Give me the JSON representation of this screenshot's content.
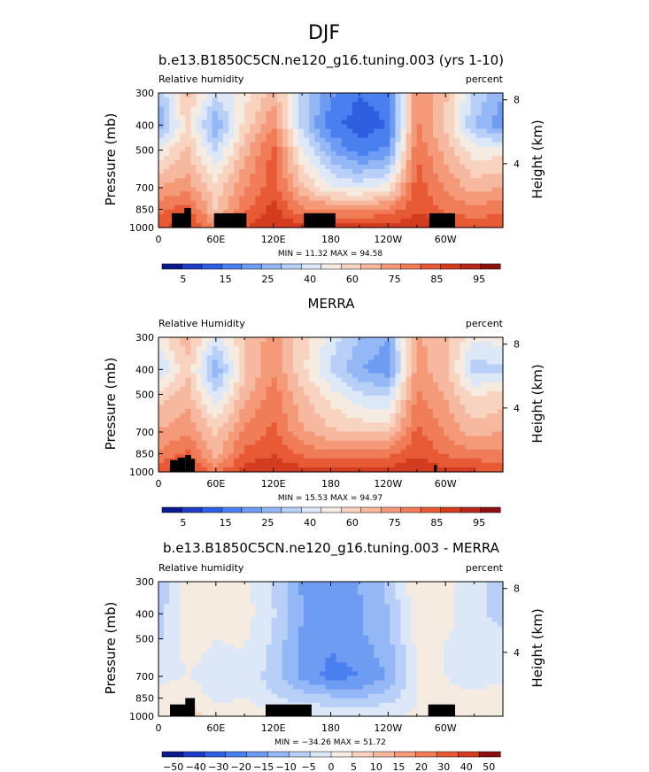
{
  "page_title": "DJF",
  "chart_data": [
    {
      "type": "heatmap",
      "title": "b.e13.B1850C5CN.ne120_g16.tuning.003 (yrs 1-10)",
      "left_label": "Relative humidity",
      "right_label": "percent",
      "ylabel": "Pressure (mb)",
      "ylabel2": "Height (km)",
      "y_ticks": [
        "300",
        "400",
        "500",
        "700",
        "850",
        "1000"
      ],
      "y2_ticks": [
        "8",
        "4"
      ],
      "x_ticks": [
        "0",
        "60E",
        "120E",
        "180",
        "120W",
        "60W"
      ],
      "min_max": "MIN =   11.32   MAX =   94.58",
      "colorbar_labels": [
        "5",
        "15",
        "25",
        "40",
        "60",
        "75",
        "85",
        "95"
      ],
      "colorbar_colors": [
        "#0a1a8c",
        "#1e3cc8",
        "#2f5fe0",
        "#4a7ff0",
        "#6e9cf2",
        "#94b8f5",
        "#b8d0f7",
        "#dce8f8",
        "#f5ebe0",
        "#f8d4c0",
        "#f7b8a0",
        "#f49a78",
        "#f07c58",
        "#e85a35",
        "#d43c20",
        "#b82818",
        "#8c1010"
      ],
      "value_range": [
        0,
        100
      ],
      "lon": [
        0,
        30,
        60,
        90,
        120,
        150,
        180,
        210,
        240,
        270,
        300,
        330,
        360
      ],
      "plev": [
        300,
        400,
        500,
        700,
        850,
        1000
      ],
      "values": [
        [
          35,
          60,
          42,
          50,
          62,
          40,
          25,
          18,
          20,
          70,
          60,
          40,
          30
        ],
        [
          30,
          55,
          30,
          55,
          70,
          38,
          20,
          14,
          18,
          72,
          58,
          35,
          25
        ],
        [
          48,
          60,
          40,
          62,
          78,
          48,
          30,
          20,
          25,
          76,
          62,
          50,
          50
        ],
        [
          65,
          68,
          55,
          70,
          80,
          60,
          48,
          45,
          50,
          80,
          70,
          62,
          65
        ],
        [
          75,
          80,
          58,
          75,
          85,
          72,
          70,
          70,
          72,
          82,
          75,
          72,
          75
        ],
        [
          82,
          86,
          70,
          82,
          88,
          84,
          85,
          86,
          85,
          88,
          84,
          82,
          82
        ]
      ],
      "topography": [
        [
          14,
          32,
          880
        ],
        [
          27,
          34,
          840
        ],
        [
          58,
          92,
          880
        ],
        [
          152,
          185,
          880
        ],
        [
          283,
          310,
          880
        ]
      ]
    },
    {
      "type": "heatmap",
      "title": "MERRA",
      "left_label": "Relative Humidity",
      "right_label": "percent",
      "ylabel": "Pressure (mb)",
      "ylabel2": "Height (km)",
      "y_ticks": [
        "300",
        "400",
        "500",
        "700",
        "850",
        "1000"
      ],
      "y2_ticks": [
        "8",
        "4"
      ],
      "x_ticks": [
        "0",
        "60E",
        "120E",
        "180",
        "120W",
        "60W"
      ],
      "min_max": "MIN =   15.53   MAX =   94.97",
      "colorbar_labels": [
        "5",
        "15",
        "25",
        "40",
        "60",
        "75",
        "85",
        "95"
      ],
      "colorbar_colors": [
        "#0a1a8c",
        "#1e3cc8",
        "#2f5fe0",
        "#4a7ff0",
        "#6e9cf2",
        "#94b8f5",
        "#b8d0f7",
        "#dce8f8",
        "#f5ebe0",
        "#f8d4c0",
        "#f7b8a0",
        "#f49a78",
        "#f07c58",
        "#e85a35",
        "#d43c20",
        "#b82818",
        "#8c1010"
      ],
      "value_range": [
        0,
        100
      ],
      "lon": [
        0,
        30,
        60,
        90,
        120,
        150,
        180,
        210,
        240,
        270,
        300,
        330,
        360
      ],
      "plev": [
        300,
        400,
        500,
        700,
        850,
        1000
      ],
      "values": [
        [
          50,
          62,
          45,
          58,
          68,
          55,
          45,
          35,
          30,
          65,
          62,
          48,
          50
        ],
        [
          40,
          58,
          30,
          58,
          70,
          55,
          40,
          30,
          25,
          68,
          60,
          38,
          40
        ],
        [
          55,
          62,
          42,
          62,
          74,
          60,
          50,
          42,
          40,
          72,
          64,
          52,
          55
        ],
        [
          65,
          70,
          58,
          72,
          78,
          66,
          60,
          58,
          58,
          78,
          70,
          62,
          65
        ],
        [
          72,
          78,
          62,
          78,
          82,
          75,
          72,
          72,
          74,
          82,
          76,
          72,
          72
        ],
        [
          82,
          86,
          74,
          85,
          88,
          86,
          86,
          87,
          86,
          88,
          84,
          84,
          82
        ]
      ],
      "topography": [
        [
          12,
          20,
          900
        ],
        [
          20,
          28,
          880
        ],
        [
          28,
          34,
          860
        ],
        [
          34,
          38,
          890
        ],
        [
          288,
          291,
          940
        ]
      ]
    },
    {
      "type": "heatmap",
      "title": "b.e13.B1850C5CN.ne120_g16.tuning.003 - MERRA",
      "left_label": "Relative humidity",
      "right_label": "percent",
      "ylabel": "Pressure (mb)",
      "ylabel2": "Height (km)",
      "y_ticks": [
        "300",
        "400",
        "500",
        "700",
        "850",
        "1000"
      ],
      "y2_ticks": [
        "8",
        "4"
      ],
      "x_ticks": [
        "0",
        "60E",
        "120E",
        "180",
        "120W",
        "60W"
      ],
      "min_max": "MIN = −34.26   MAX =   51.72",
      "colorbar_labels": [
        "−50",
        "−40",
        "−30",
        "−20",
        "−15",
        "−10",
        "−5",
        "0",
        "5",
        "10",
        "15",
        "20",
        "30",
        "40",
        "50"
      ],
      "colorbar_colors": [
        "#0a1a8c",
        "#1e3cc8",
        "#2f5fe0",
        "#4a7ff0",
        "#6e9cf2",
        "#94b8f5",
        "#b8d0f7",
        "#dce8f8",
        "#f5ebe0",
        "#f8d4c0",
        "#f7b8a0",
        "#f49a78",
        "#f07c58",
        "#e85a35",
        "#d43c20",
        "#8c1010"
      ],
      "value_range": [
        -55,
        55
      ],
      "lon": [
        0,
        30,
        60,
        90,
        120,
        150,
        180,
        210,
        240,
        270,
        300,
        330,
        360
      ],
      "plev": [
        300,
        400,
        500,
        700,
        850,
        1000
      ],
      "values": [
        [
          -15,
          5,
          3,
          2,
          -8,
          -22,
          -25,
          -20,
          -12,
          6,
          2,
          -4,
          -12
        ],
        [
          -10,
          4,
          4,
          3,
          -6,
          -20,
          -24,
          -22,
          -14,
          4,
          2,
          -4,
          -10
        ],
        [
          -8,
          2,
          0,
          1,
          -8,
          -22,
          -26,
          -22,
          -16,
          2,
          0,
          -2,
          -5
        ],
        [
          -2,
          0,
          -2,
          -2,
          -10,
          -22,
          -30,
          -28,
          -20,
          0,
          0,
          -2,
          -2
        ],
        [
          3,
          4,
          -2,
          0,
          -6,
          -10,
          -12,
          -14,
          -10,
          0,
          1,
          1,
          3
        ],
        [
          2,
          12,
          4,
          4,
          2,
          0,
          0,
          0,
          0,
          1,
          2,
          1,
          2
        ]
      ],
      "topography": [
        [
          12,
          30,
          900
        ],
        [
          28,
          38,
          850
        ],
        [
          112,
          160,
          900
        ],
        [
          282,
          310,
          900
        ]
      ]
    }
  ]
}
